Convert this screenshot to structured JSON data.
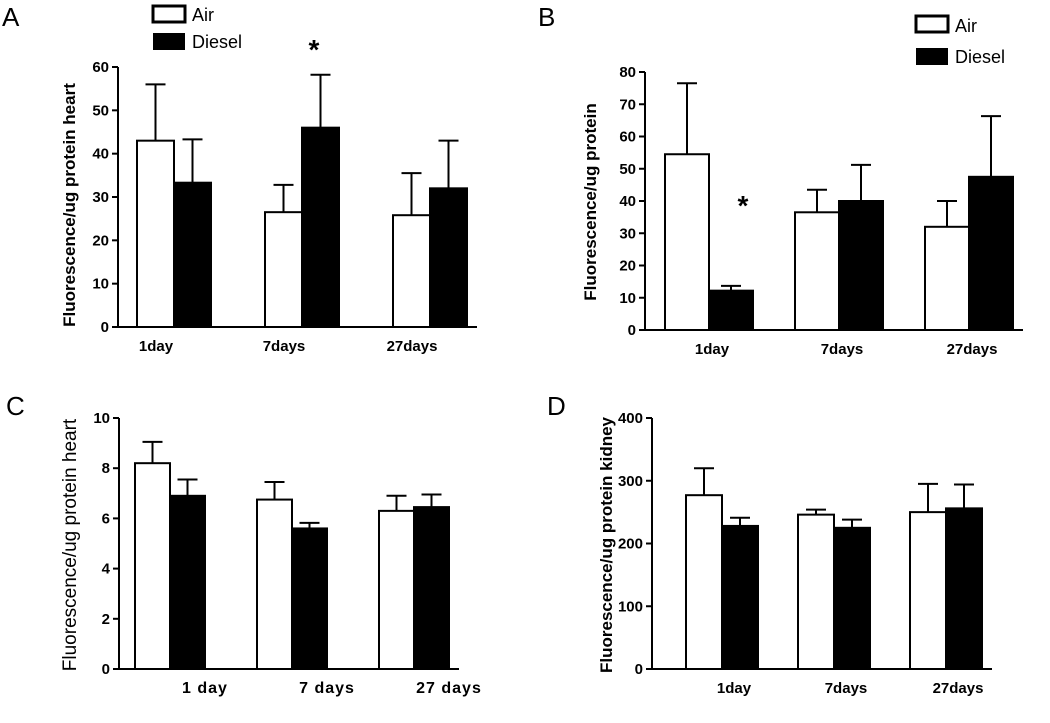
{
  "figure": {
    "panels": [
      "A",
      "B",
      "C",
      "D"
    ]
  },
  "chart_data": [
    {
      "id": "A",
      "type": "bar",
      "title": "",
      "ylabel": "Fluorescence/ug protein heart",
      "xlabel": "",
      "categories": [
        "1day",
        "7days",
        "27days"
      ],
      "ylim": [
        0,
        60
      ],
      "yticks": [
        0,
        10,
        20,
        30,
        40,
        50,
        60
      ],
      "legend": {
        "position": "top",
        "entries": [
          "Air",
          "Diesel"
        ]
      },
      "series": [
        {
          "name": "Air",
          "fill": "#ffffff",
          "values": [
            43,
            26.5,
            25.8
          ],
          "errors": [
            13,
            6.3,
            9.7
          ]
        },
        {
          "name": "Diesel",
          "fill": "#000000",
          "values": [
            33.3,
            46,
            32
          ],
          "errors": [
            10,
            12.2,
            11
          ]
        }
      ],
      "annotations": [
        {
          "text": "*",
          "category": 1,
          "series": 1
        }
      ]
    },
    {
      "id": "B",
      "type": "bar",
      "title": "",
      "ylabel": "Fluorescence/ug protein",
      "xlabel": "",
      "categories": [
        "1day",
        "7days",
        "27days"
      ],
      "ylim": [
        0,
        80
      ],
      "yticks": [
        0,
        10,
        20,
        30,
        40,
        50,
        60,
        70,
        80
      ],
      "legend": {
        "position": "top-right",
        "entries": [
          "Air",
          "Diesel"
        ]
      },
      "series": [
        {
          "name": "Air",
          "fill": "#ffffff",
          "values": [
            54.5,
            36.5,
            32
          ],
          "errors": [
            22,
            7,
            8
          ]
        },
        {
          "name": "Diesel",
          "fill": "#000000",
          "values": [
            12.2,
            40,
            47.5
          ],
          "errors": [
            1.5,
            11.2,
            18.8
          ]
        }
      ],
      "annotations": [
        {
          "text": "*",
          "category": 0,
          "series": 1
        }
      ]
    },
    {
      "id": "C",
      "type": "bar",
      "title": "",
      "ylabel": "Fluorescence/ug protein heart",
      "xlabel": "",
      "categories": [
        "1 day",
        "7 days",
        "27 days"
      ],
      "ylim": [
        0,
        10
      ],
      "yticks": [
        0,
        2,
        4,
        6,
        8,
        10
      ],
      "series": [
        {
          "name": "Air",
          "fill": "#ffffff",
          "values": [
            8.2,
            6.75,
            6.3
          ],
          "errors": [
            0.85,
            0.7,
            0.6
          ]
        },
        {
          "name": "Diesel",
          "fill": "#000000",
          "values": [
            6.9,
            5.6,
            6.45
          ],
          "errors": [
            0.65,
            0.22,
            0.5
          ]
        }
      ]
    },
    {
      "id": "D",
      "type": "bar",
      "title": "",
      "ylabel": "Fluorescence/ug protein kidney",
      "xlabel": "",
      "categories": [
        "1day",
        "7days",
        "27days"
      ],
      "ylim": [
        0,
        400
      ],
      "yticks": [
        0,
        100,
        200,
        300,
        400
      ],
      "series": [
        {
          "name": "Air",
          "fill": "#ffffff",
          "values": [
            277,
            246,
            250
          ],
          "errors": [
            43,
            8,
            45
          ]
        },
        {
          "name": "Diesel",
          "fill": "#000000",
          "values": [
            228,
            225,
            256
          ],
          "errors": [
            13,
            13,
            38
          ]
        }
      ]
    }
  ]
}
